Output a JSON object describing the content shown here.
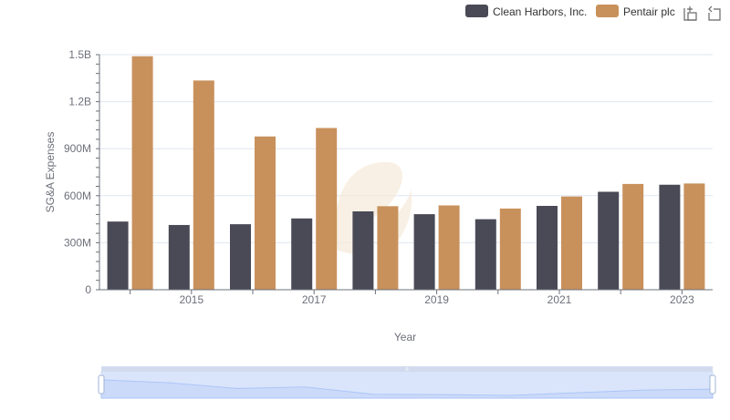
{
  "chart_data": {
    "type": "bar",
    "xlabel": "Year",
    "ylabel": "SG&A Expenses",
    "categories": [
      "2014",
      "2015",
      "2016",
      "2017",
      "2018",
      "2019",
      "2020",
      "2021",
      "2022",
      "2023"
    ],
    "x_tick_labels": [
      "2015",
      "2017",
      "2019",
      "2021",
      "2023"
    ],
    "y_tick_labels": [
      "0",
      "300M",
      "600M",
      "900M",
      "1.2B",
      "1.5B"
    ],
    "y_ticks": [
      0,
      300000000,
      600000000,
      900000000,
      1200000000,
      1500000000
    ],
    "ylim": [
      0,
      1500000000
    ],
    "grid": true,
    "legend_position": "top-right",
    "series": [
      {
        "name": "Clean Harbors, Inc.",
        "color": "#4a4a56",
        "values": [
          435000000,
          413000000,
          418000000,
          455000000,
          500000000,
          482000000,
          450000000,
          535000000,
          625000000,
          670000000
        ]
      },
      {
        "name": "Pentair plc",
        "color": "#c8915c",
        "values": [
          1490000000,
          1335000000,
          978000000,
          1032000000,
          533000000,
          538000000,
          518000000,
          595000000,
          675000000,
          678000000
        ]
      }
    ]
  },
  "toolbox": {
    "zoom_icon": "zoom-icon",
    "restore_icon": "restore-icon"
  },
  "data_zoom": {
    "range_start_percent": 0,
    "range_end_percent": 100
  }
}
